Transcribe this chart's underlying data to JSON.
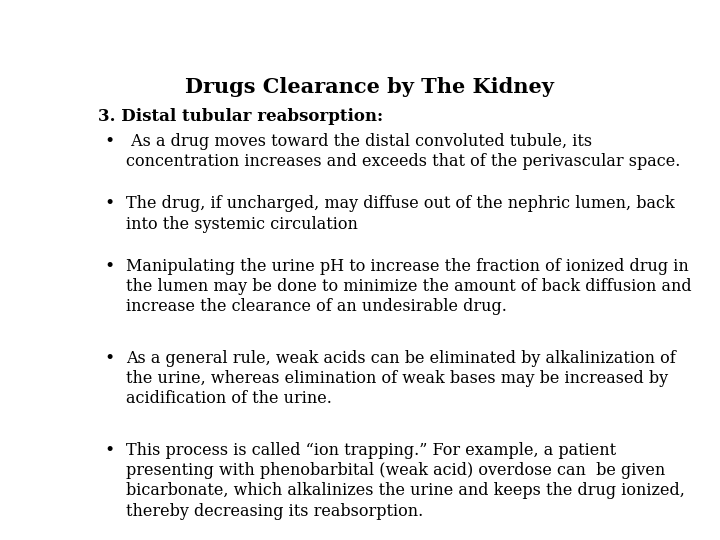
{
  "title": "Drugs Clearance by The Kidney",
  "background_color": "#ffffff",
  "title_fontsize": 15,
  "title_fontweight": "bold",
  "heading": "3. Distal tubular reabsorption:",
  "heading_fontsize": 12,
  "heading_fontweight": "bold",
  "bullet_fontsize": 11.5,
  "font_family": "DejaVu Serif",
  "bullets": [
    " As a drug moves toward the distal convoluted tubule, its\nconcentration increases and exceeds that of the perivascular space.",
    "The drug, if uncharged, may diffuse out of the nephric lumen, back\ninto the systemic circulation",
    "Manipulating the urine pH to increase the fraction of ionized drug in\nthe lumen may be done to minimize the amount of back diffusion and\nincrease the clearance of an undesirable drug.",
    "As a general rule, weak acids can be eliminated by alkalinization of\nthe urine, whereas elimination of weak bases may be increased by\nacidification of the urine.",
    "This process is called “ion trapping.” For example, a patient\npresenting with phenobarbital (weak acid) overdose can  be given\nbicarbonate, which alkalinizes the urine and keeps the drug ionized,\nthereby decreasing its reabsorption."
  ],
  "bullet_line_counts": [
    2,
    2,
    3,
    3,
    4
  ]
}
